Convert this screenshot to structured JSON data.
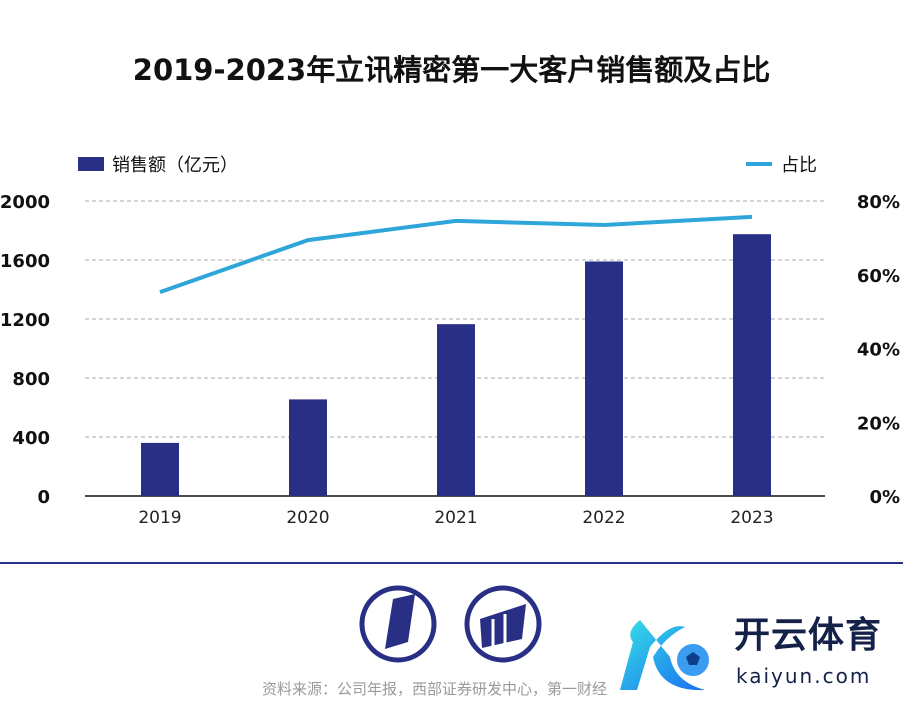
{
  "chart_data": {
    "type": "bar",
    "title": "2019-2023年立讯精密第一大客户销售额及占比",
    "categories": [
      "2019",
      "2020",
      "2021",
      "2022",
      "2023"
    ],
    "series": [
      {
        "name": "销售额（亿元）",
        "type": "bar",
        "axis": "left",
        "color": "#2a2f86",
        "values": [
          360,
          655,
          1165,
          1590,
          1775
        ]
      },
      {
        "name": "占比",
        "type": "line",
        "axis": "right",
        "color": "#2ea6d9",
        "values": [
          55.3,
          69.4,
          74.6,
          73.5,
          75.7
        ]
      }
    ],
    "y_left": {
      "ylim": [
        0,
        2000
      ],
      "ticks": [
        "0",
        "400",
        "800",
        "1200",
        "1600",
        "2000"
      ]
    },
    "y_right": {
      "ylim": [
        0,
        80
      ],
      "ticks": [
        "0%",
        "20%",
        "40%",
        "60%",
        "80%"
      ]
    },
    "grid": true,
    "legend_placement": "top"
  },
  "source": "资料来源：公司年报，西部证券研发中心，第一财经",
  "watermark": {
    "cn": "开云体育",
    "en": "kaiyun.com"
  }
}
